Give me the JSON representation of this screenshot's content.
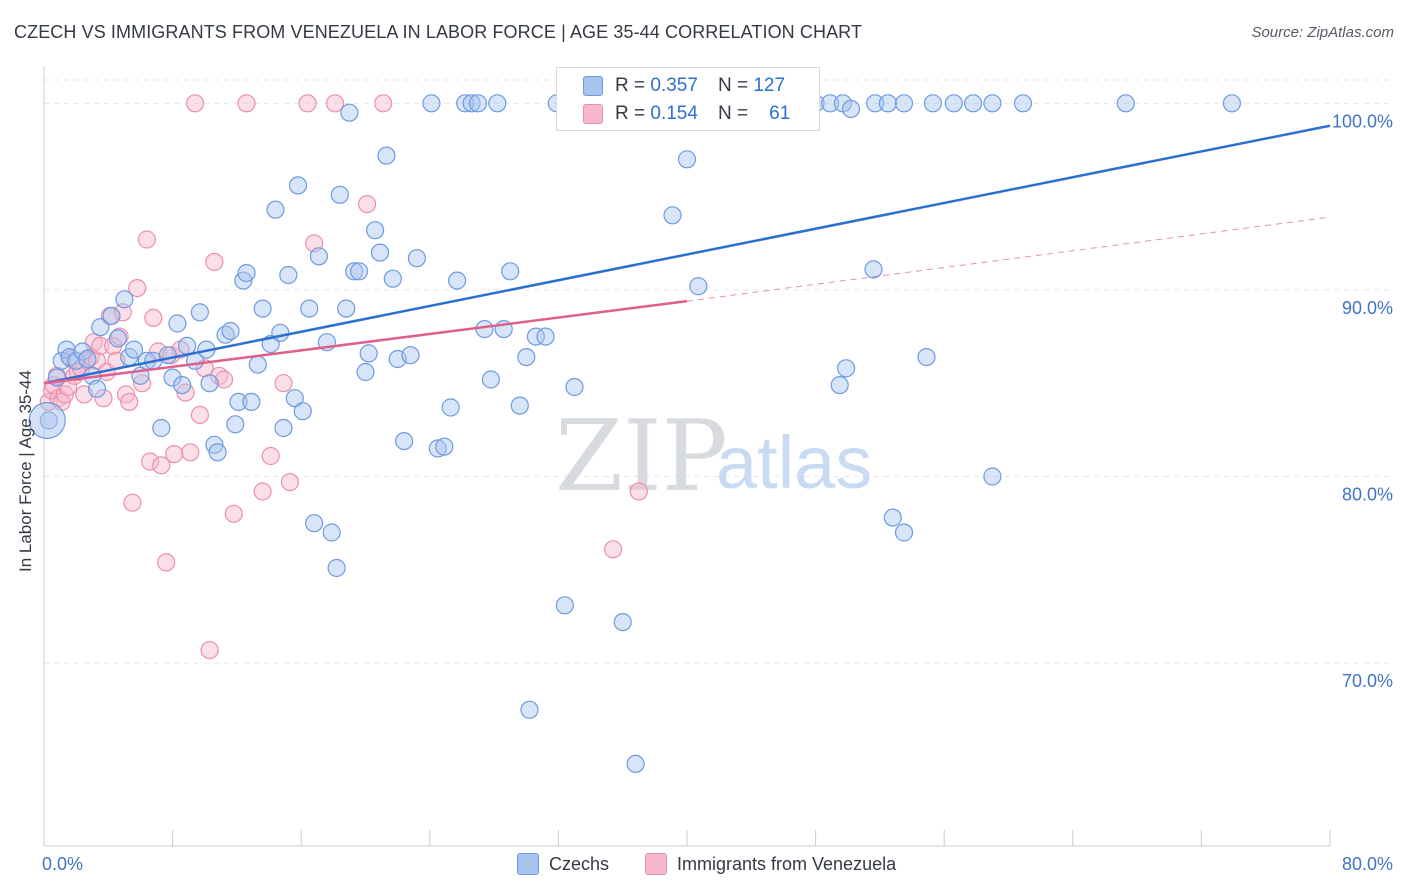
{
  "title": "CZECH VS IMMIGRANTS FROM VENEZUELA IN LABOR FORCE | AGE 35-44 CORRELATION CHART",
  "source": "Source: ZipAtlas.com",
  "watermark": {
    "zip": "ZIP",
    "atlas": "atlas"
  },
  "legend_top": {
    "czechs": {
      "r_label": "R =",
      "r_value": "0.357",
      "n_label": "N =",
      "n_value": "127"
    },
    "venezuela": {
      "r_label": "R =",
      "r_value": "0.154",
      "n_label": "N =",
      "n_value": "61"
    }
  },
  "legend_bottom": {
    "czechs": "Czechs",
    "venezuela": "Immigrants from Venezuela"
  },
  "colors": {
    "czech_fill": "#a8c4ee",
    "czech_stroke": "#6d9be0",
    "czech_line": "#2d6fd0",
    "venezuela_fill": "#f6b9cc",
    "venezuela_stroke": "#ec8fac",
    "venezuela_line": "#e0608c",
    "tick_label": "#3f74c8",
    "grid": "#e3e6ea"
  },
  "chart_data": {
    "type": "scatter",
    "title": "CZECH VS IMMIGRANTS FROM VENEZUELA IN LABOR FORCE | AGE 35-44 CORRELATION CHART",
    "xlabel": "",
    "ylabel": "In Labor Force | Age 35-44",
    "xlim": [
      0,
      80
    ],
    "ylim": [
      60.2,
      102.0
    ],
    "x_tick_labels": [
      "0.0%",
      "80.0%"
    ],
    "y_ticks": [
      70,
      80,
      90,
      100
    ],
    "y_tick_labels": [
      "70.0%",
      "80.0%",
      "90.0%",
      "100.0%"
    ],
    "grid": true,
    "legend_position": "top-center",
    "series": [
      {
        "name": "Czechs",
        "r": 0.357,
        "n": 127,
        "trend": {
          "x": [
            0,
            80
          ],
          "y": [
            85.0,
            98.8
          ],
          "style": "solid"
        },
        "points": [
          [
            0.3,
            83.0
          ],
          [
            0.8,
            85.3
          ],
          [
            1.1,
            86.2
          ],
          [
            1.4,
            86.8
          ],
          [
            1.6,
            86.4
          ],
          [
            2.0,
            86.2
          ],
          [
            2.4,
            86.7
          ],
          [
            2.7,
            86.3
          ],
          [
            3.0,
            85.4
          ],
          [
            3.3,
            84.7
          ],
          [
            3.5,
            88.0
          ],
          [
            4.2,
            88.6
          ],
          [
            4.6,
            87.4
          ],
          [
            5.0,
            89.5
          ],
          [
            5.3,
            86.4
          ],
          [
            5.6,
            86.8
          ],
          [
            6.0,
            85.4
          ],
          [
            6.4,
            86.2
          ],
          [
            6.8,
            86.2
          ],
          [
            7.3,
            82.6
          ],
          [
            7.7,
            86.5
          ],
          [
            8.0,
            85.3
          ],
          [
            8.3,
            88.2
          ],
          [
            8.6,
            84.9
          ],
          [
            8.9,
            87.0
          ],
          [
            9.4,
            86.2
          ],
          [
            9.7,
            88.8
          ],
          [
            10.1,
            86.8
          ],
          [
            10.3,
            85.0
          ],
          [
            10.6,
            81.7
          ],
          [
            10.8,
            81.3
          ],
          [
            11.3,
            87.6
          ],
          [
            11.6,
            87.8
          ],
          [
            11.9,
            82.8
          ],
          [
            12.1,
            84.0
          ],
          [
            12.4,
            90.5
          ],
          [
            12.6,
            90.9
          ],
          [
            12.9,
            84.0
          ],
          [
            13.3,
            86.0
          ],
          [
            13.6,
            89.0
          ],
          [
            14.1,
            87.1
          ],
          [
            14.4,
            94.3
          ],
          [
            14.7,
            87.7
          ],
          [
            14.9,
            82.6
          ],
          [
            15.2,
            90.8
          ],
          [
            15.6,
            84.2
          ],
          [
            15.8,
            95.6
          ],
          [
            16.1,
            83.5
          ],
          [
            16.5,
            89.0
          ],
          [
            16.8,
            77.5
          ],
          [
            17.1,
            91.8
          ],
          [
            17.6,
            87.2
          ],
          [
            17.9,
            77.0
          ],
          [
            18.2,
            75.1
          ],
          [
            18.4,
            95.1
          ],
          [
            18.8,
            89.0
          ],
          [
            19.0,
            99.5
          ],
          [
            19.3,
            91.0
          ],
          [
            19.6,
            91.0
          ],
          [
            20.0,
            85.6
          ],
          [
            20.2,
            86.6
          ],
          [
            20.6,
            93.2
          ],
          [
            20.9,
            92.0
          ],
          [
            21.3,
            97.2
          ],
          [
            21.7,
            90.6
          ],
          [
            22.0,
            86.3
          ],
          [
            22.4,
            81.9
          ],
          [
            22.8,
            86.5
          ],
          [
            23.2,
            91.7
          ],
          [
            24.1,
            100.0
          ],
          [
            24.5,
            81.5
          ],
          [
            24.9,
            81.6
          ],
          [
            25.3,
            83.7
          ],
          [
            25.7,
            90.5
          ],
          [
            26.2,
            100.0
          ],
          [
            26.6,
            100.0
          ],
          [
            27.0,
            100.0
          ],
          [
            27.4,
            87.9
          ],
          [
            27.8,
            85.2
          ],
          [
            28.2,
            100.0
          ],
          [
            28.6,
            87.9
          ],
          [
            29.0,
            91.0
          ],
          [
            29.6,
            83.8
          ],
          [
            30.0,
            86.4
          ],
          [
            30.6,
            87.5
          ],
          [
            31.2,
            87.5
          ],
          [
            31.9,
            100.0
          ],
          [
            32.4,
            73.1
          ],
          [
            32.8,
            100.0
          ],
          [
            33.0,
            84.8
          ],
          [
            33.4,
            100.0
          ],
          [
            34.1,
            100.0
          ],
          [
            34.6,
            100.0
          ],
          [
            35.2,
            100.0
          ],
          [
            36.0,
            72.2
          ],
          [
            36.8,
            64.6
          ],
          [
            37.4,
            100.0
          ],
          [
            37.7,
            100.0
          ],
          [
            38.0,
            100.0
          ],
          [
            38.6,
            100.0
          ],
          [
            39.1,
            94.0
          ],
          [
            39.6,
            100.0
          ],
          [
            40.0,
            97.0
          ],
          [
            40.4,
            100.0
          ],
          [
            40.8,
            100.0
          ],
          [
            41.3,
            100.0
          ],
          [
            42.1,
            100.0
          ],
          [
            42.6,
            100.0
          ],
          [
            43.3,
            100.0
          ],
          [
            44.0,
            100.0
          ],
          [
            44.8,
            100.0
          ],
          [
            45.6,
            100.0
          ],
          [
            46.3,
            100.0
          ],
          [
            47.2,
            100.0
          ],
          [
            48.0,
            100.0
          ],
          [
            48.9,
            100.0
          ],
          [
            49.7,
            100.0
          ],
          [
            50.2,
            99.7
          ],
          [
            51.7,
            100.0
          ],
          [
            52.5,
            100.0
          ],
          [
            53.5,
            100.0
          ],
          [
            55.3,
            100.0
          ],
          [
            56.6,
            100.0
          ],
          [
            57.8,
            100.0
          ],
          [
            59.0,
            100.0
          ],
          [
            60.9,
            100.0
          ],
          [
            67.3,
            100.0
          ],
          [
            73.9,
            100.0
          ],
          [
            40.7,
            90.2
          ],
          [
            49.5,
            84.9
          ],
          [
            49.9,
            85.8
          ],
          [
            51.6,
            91.1
          ],
          [
            52.8,
            77.8
          ],
          [
            53.5,
            77.0
          ],
          [
            54.9,
            86.4
          ],
          [
            59.0,
            80.0
          ],
          [
            30.2,
            67.5
          ]
        ]
      },
      {
        "name": "Immigrants from Venezuela",
        "r": 0.154,
        "n": 61,
        "trend": {
          "x": [
            0,
            40
          ],
          "y": [
            85.0,
            89.4
          ],
          "style": "solid"
        },
        "trend_extension": {
          "x": [
            40,
            80
          ],
          "y": [
            89.4,
            93.9
          ],
          "style": "dashed"
        },
        "points": [
          [
            0.3,
            84.0
          ],
          [
            0.5,
            84.6
          ],
          [
            0.6,
            84.9
          ],
          [
            0.8,
            85.4
          ],
          [
            0.9,
            84.2
          ],
          [
            1.1,
            84.0
          ],
          [
            1.3,
            84.4
          ],
          [
            1.5,
            84.8
          ],
          [
            1.7,
            86.3
          ],
          [
            1.9,
            85.4
          ],
          [
            2.1,
            85.6
          ],
          [
            2.3,
            85.8
          ],
          [
            2.5,
            84.4
          ],
          [
            2.7,
            86.2
          ],
          [
            2.9,
            86.4
          ],
          [
            3.1,
            87.2
          ],
          [
            3.3,
            86.2
          ],
          [
            3.5,
            87.0
          ],
          [
            3.7,
            84.2
          ],
          [
            3.9,
            85.6
          ],
          [
            4.1,
            88.6
          ],
          [
            4.3,
            87.0
          ],
          [
            4.5,
            86.2
          ],
          [
            4.7,
            87.5
          ],
          [
            4.9,
            88.8
          ],
          [
            5.1,
            84.4
          ],
          [
            5.3,
            84.0
          ],
          [
            5.5,
            78.6
          ],
          [
            5.8,
            90.1
          ],
          [
            6.1,
            85.0
          ],
          [
            6.4,
            92.7
          ],
          [
            6.6,
            80.8
          ],
          [
            6.8,
            88.5
          ],
          [
            7.1,
            86.7
          ],
          [
            7.3,
            80.6
          ],
          [
            7.6,
            75.4
          ],
          [
            7.9,
            86.5
          ],
          [
            8.1,
            81.2
          ],
          [
            8.5,
            86.8
          ],
          [
            8.8,
            84.5
          ],
          [
            9.1,
            81.3
          ],
          [
            9.4,
            100.0
          ],
          [
            9.7,
            83.3
          ],
          [
            10.0,
            85.8
          ],
          [
            10.3,
            70.7
          ],
          [
            10.6,
            91.5
          ],
          [
            10.9,
            85.4
          ],
          [
            11.2,
            85.2
          ],
          [
            11.8,
            78.0
          ],
          [
            12.6,
            100.0
          ],
          [
            13.6,
            79.2
          ],
          [
            14.1,
            81.1
          ],
          [
            14.9,
            85.0
          ],
          [
            15.3,
            79.7
          ],
          [
            16.4,
            100.0
          ],
          [
            16.8,
            92.5
          ],
          [
            18.1,
            100.0
          ],
          [
            20.1,
            94.6
          ],
          [
            21.1,
            100.0
          ],
          [
            35.4,
            76.1
          ],
          [
            37.0,
            79.2
          ]
        ]
      }
    ]
  }
}
